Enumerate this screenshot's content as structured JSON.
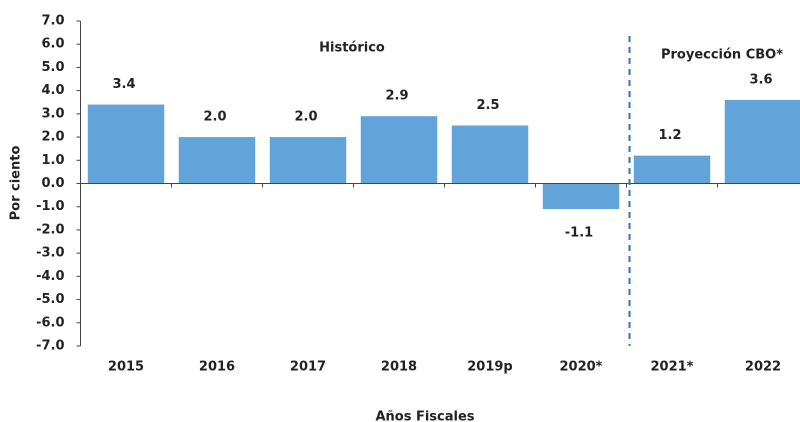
{
  "chart_data": {
    "type": "bar",
    "categories": [
      "2015",
      "2016",
      "2017",
      "2018",
      "2019p",
      "2020*",
      "2021*",
      "2022"
    ],
    "values": [
      3.4,
      2.0,
      2.0,
      2.9,
      2.5,
      -1.1,
      1.2,
      3.6
    ],
    "value_labels": [
      "3.4",
      "2.0",
      "2.0",
      "2.9",
      "2.5",
      "-1.1",
      "1.2",
      "3.6"
    ],
    "color": "#62a3d9",
    "ylim": [
      -7,
      7
    ],
    "yticks": [
      {
        "value": 7,
        "label": "7.0"
      },
      {
        "value": 6,
        "label": "6.0"
      },
      {
        "value": 5,
        "label": "5.0"
      },
      {
        "value": 4,
        "label": "4.0"
      },
      {
        "value": 3,
        "label": "3.0"
      },
      {
        "value": 2,
        "label": "2.0"
      },
      {
        "value": 1,
        "label": "1.0"
      },
      {
        "value": 0,
        "label": "0.0"
      },
      {
        "value": -1,
        "label": "-1.0"
      },
      {
        "value": -2,
        "label": "-2.0"
      },
      {
        "value": -3,
        "label": "-3.0"
      },
      {
        "value": -4,
        "label": "-4.0"
      },
      {
        "value": -5,
        "label": "-5.0"
      },
      {
        "value": -6,
        "label": "-6.0"
      },
      {
        "value": -7,
        "label": "-7.0"
      }
    ],
    "y_label": "Por ciento",
    "x_label": "Años Fiscales",
    "annotations": [
      "Histórico",
      "Proyección CBO*"
    ],
    "grid": false
  }
}
